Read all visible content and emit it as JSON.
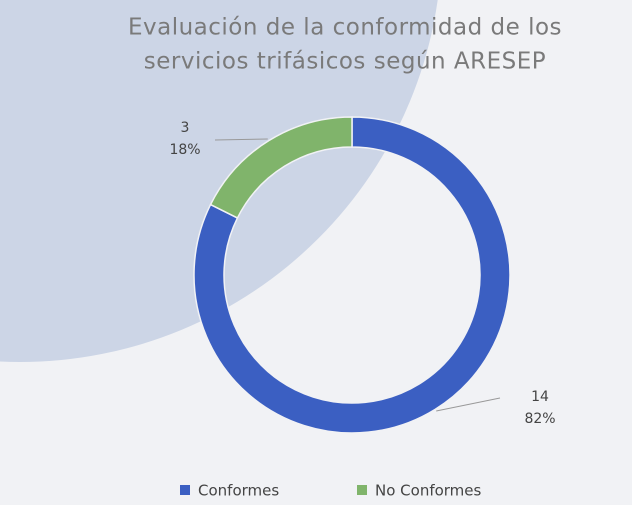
{
  "chart_data": {
    "type": "donut",
    "title": [
      "Evaluación de la conformidad de los",
      "servicios trifásicos según ARESEP"
    ],
    "categories": [
      "Conformes",
      "No Conformes"
    ],
    "values": [
      14,
      3
    ],
    "percentages": [
      82,
      18
    ],
    "percentage_labels": [
      "82%",
      "18%"
    ],
    "colors": [
      "#3b5fc2",
      "#80b46b"
    ],
    "legend": "bottom"
  }
}
